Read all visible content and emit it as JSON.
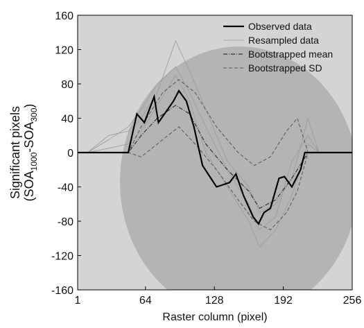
{
  "chart_data": {
    "type": "line",
    "x_label": "Raster column (pixel)",
    "y_label": "Significant pixels",
    "y_label_sub": [
      "(SOA",
      "1000",
      "-SOA",
      "300",
      ")"
    ],
    "xlim": [
      1,
      256
    ],
    "xticks": [
      1,
      64,
      128,
      192,
      256
    ],
    "ylim": [
      -160,
      160
    ],
    "yticks": [
      -160,
      -120,
      -80,
      -40,
      0,
      40,
      80,
      120,
      160
    ],
    "legend": "upper right",
    "series": [
      {
        "name": "Observed data",
        "color": "#000000",
        "style": "solid",
        "width": 2.2,
        "x": [
          1,
          48,
          56,
          63,
          72,
          76,
          90,
          95,
          102,
          109,
          117,
          130,
          142,
          148,
          155,
          164,
          169,
          174,
          180,
          188,
          193,
          200,
          208,
          212,
          256
        ],
        "values": [
          0,
          0,
          45,
          35,
          65,
          35,
          60,
          72,
          60,
          30,
          -15,
          -40,
          -35,
          -25,
          -50,
          -75,
          -83,
          -70,
          -65,
          -30,
          -28,
          -40,
          -20,
          0,
          0
        ]
      },
      {
        "name": "Resampled data",
        "color": "#9a9a9a",
        "style": "solid",
        "width": 0.8,
        "x": [
          10,
          30,
          48,
          60,
          75,
          92,
          105,
          120,
          140,
          160,
          170,
          185,
          200,
          215,
          225
        ],
        "lines": [
          [
            0,
            15,
            30,
            50,
            80,
            100,
            70,
            30,
            -20,
            -60,
            -90,
            -75,
            -10,
            20,
            0
          ],
          [
            0,
            5,
            10,
            25,
            55,
            90,
            60,
            0,
            -40,
            -80,
            -110,
            -90,
            -50,
            10,
            0
          ],
          [
            0,
            20,
            25,
            40,
            70,
            130,
            95,
            50,
            -10,
            -40,
            -70,
            -60,
            -30,
            40,
            0
          ]
        ]
      },
      {
        "name": "Bootstrapped mean",
        "color": "#333333",
        "style": "dashdot",
        "width": 1.2,
        "x": [
          1,
          48,
          60,
          75,
          92,
          105,
          120,
          140,
          160,
          170,
          185,
          200,
          215,
          256
        ],
        "values": [
          0,
          0,
          20,
          40,
          55,
          45,
          10,
          -20,
          -45,
          -65,
          -55,
          -30,
          0,
          0
        ]
      },
      {
        "name": "Bootstrapped SD",
        "color": "#555555",
        "style": "dashed",
        "width": 1,
        "x": [
          1,
          48,
          60,
          80,
          95,
          110,
          130,
          150,
          165,
          180,
          195,
          205,
          215,
          256
        ],
        "values": [
          0,
          0,
          30,
          70,
          85,
          70,
          30,
          0,
          -15,
          -5,
          25,
          40,
          0,
          0
        ],
        "lower": [
          0,
          0,
          -5,
          15,
          30,
          10,
          -20,
          -55,
          -80,
          -90,
          -70,
          -45,
          0,
          0
        ]
      }
    ]
  }
}
